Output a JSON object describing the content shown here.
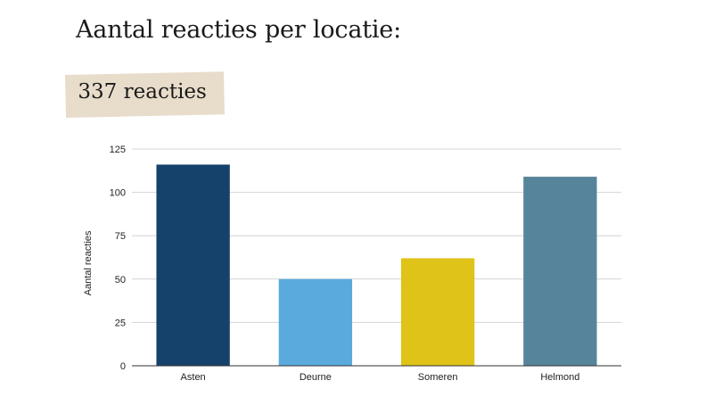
{
  "header": {
    "title": "Aantal reacties per locatie:"
  },
  "summary": {
    "total_label": "337 reacties"
  },
  "chart_data": {
    "type": "bar",
    "categories": [
      "Asten",
      "Deurne",
      "Someren",
      "Helmond"
    ],
    "values": [
      116,
      50,
      62,
      109
    ],
    "colors": [
      "#15426b",
      "#5aaadd",
      "#dfc319",
      "#56849a"
    ],
    "title": "",
    "xlabel": "",
    "ylabel": "Aantal reacties",
    "ylim": [
      0,
      125
    ],
    "yticks": [
      0,
      25,
      50,
      75,
      100,
      125
    ],
    "grid": true,
    "legend": "none"
  }
}
